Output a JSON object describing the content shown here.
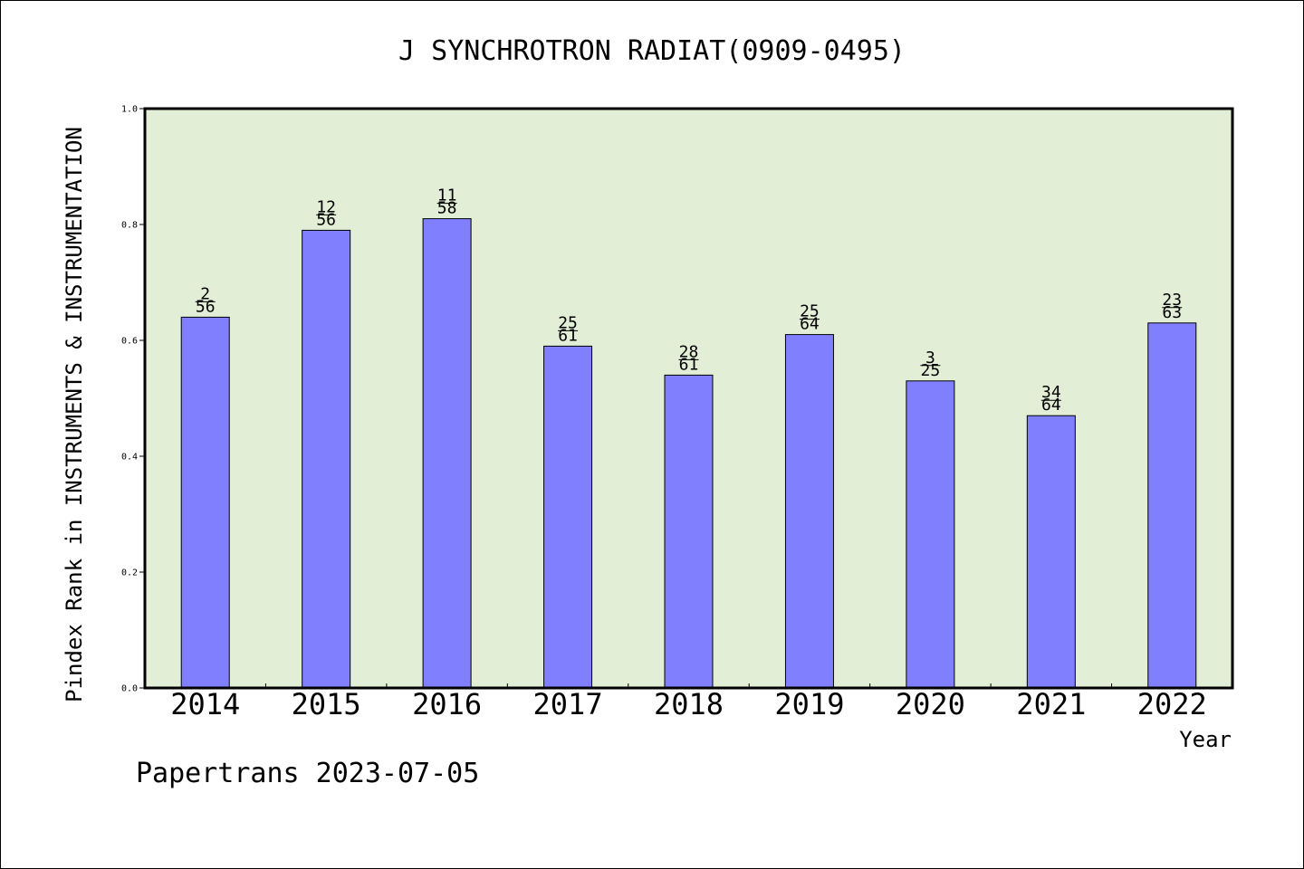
{
  "chart_data": {
    "type": "bar",
    "title": "J SYNCHROTRON RADIAT(0909-0495)",
    "xlabel": "Year",
    "ylabel": "Pindex Rank in INSTRUMENTS & INSTRUMENTATION",
    "categories": [
      "2014",
      "2015",
      "2016",
      "2017",
      "2018",
      "2019",
      "2020",
      "2021",
      "2022"
    ],
    "values": [
      0.64,
      0.79,
      0.81,
      0.59,
      0.54,
      0.61,
      0.53,
      0.47,
      0.63
    ],
    "rank_labels": [
      {
        "rank": "2",
        "total": "56"
      },
      {
        "rank": "12",
        "total": "56"
      },
      {
        "rank": "11",
        "total": "58"
      },
      {
        "rank": "25",
        "total": "61"
      },
      {
        "rank": "28",
        "total": "61"
      },
      {
        "rank": "25",
        "total": "64"
      },
      {
        "rank": "3",
        "total": "25"
      },
      {
        "rank": "34",
        "total": "64"
      },
      {
        "rank": "23",
        "total": "63"
      }
    ],
    "ylim": [
      0,
      1.0
    ],
    "yticks": [
      "0.0",
      "0.2",
      "0.4",
      "0.6",
      "0.8",
      "1.0"
    ],
    "grid": false,
    "colors": {
      "bar": "#8080ff",
      "plot_background": "#e2efd6"
    }
  },
  "footer": "Papertrans 2023-07-05"
}
